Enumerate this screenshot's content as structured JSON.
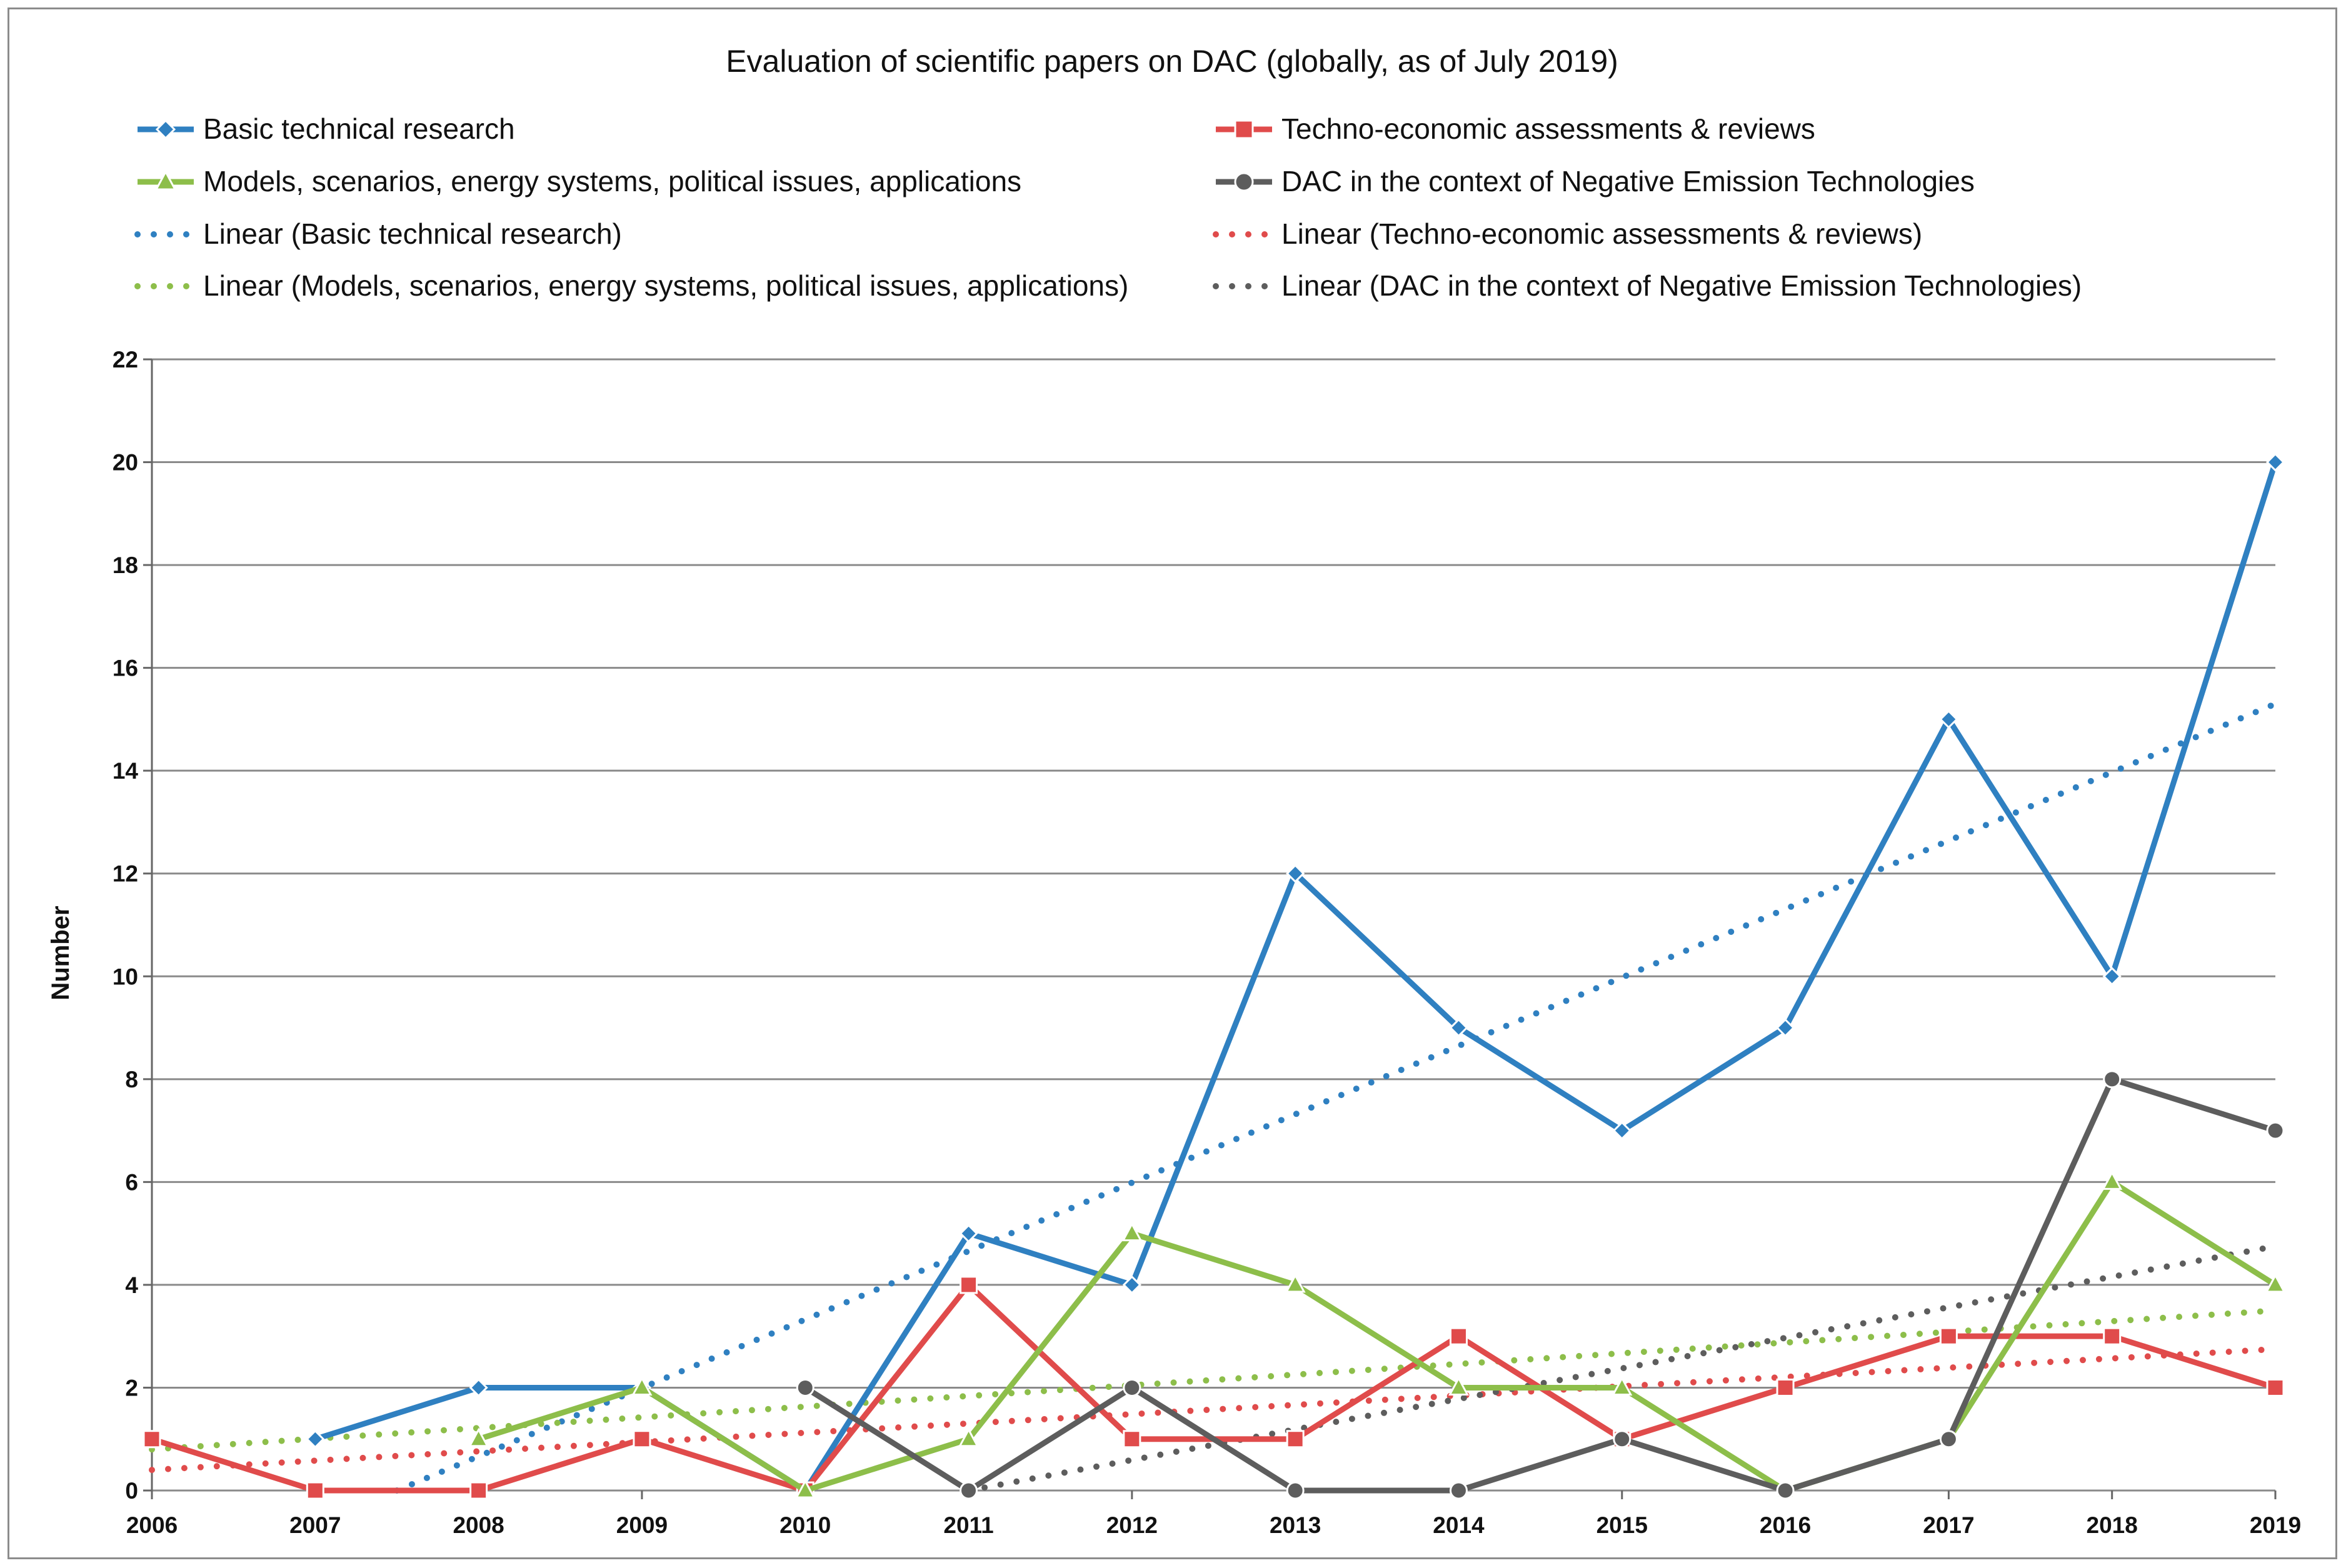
{
  "chart_data": {
    "type": "line",
    "title": "Evaluation of scientific papers on DAC (globally, as of July 2019)",
    "xlabel": "",
    "ylabel": "Number",
    "ylim": [
      0,
      22
    ],
    "ytick_step": 2,
    "grid": true,
    "categories": [
      "2006",
      "2007",
      "2008",
      "2009",
      "2010",
      "2011",
      "2012",
      "2013",
      "2014",
      "2015",
      "2016",
      "2017",
      "2018",
      "2019"
    ],
    "series": [
      {
        "name": "Basic technical research",
        "color": "#2f80c1",
        "marker": "diamond",
        "values": [
          null,
          1,
          2,
          2,
          0,
          5,
          4,
          12,
          9,
          7,
          9,
          15,
          10,
          20
        ]
      },
      {
        "name": "Techno-economic assessments & reviews",
        "color": "#e04b4b",
        "marker": "square",
        "values": [
          1,
          0,
          0,
          1,
          0,
          4,
          1,
          1,
          3,
          1,
          2,
          3,
          3,
          2
        ]
      },
      {
        "name": "Models, scenarios, energy systems, political issues, applications",
        "color": "#8dbe4a",
        "marker": "triangle",
        "values": [
          null,
          null,
          1,
          2,
          0,
          1,
          5,
          4,
          2,
          2,
          0,
          1,
          6,
          4
        ]
      },
      {
        "name": "DAC in the context of Negative Emission Technologies",
        "color": "#5d5d5d",
        "marker": "circle",
        "values": [
          null,
          null,
          null,
          null,
          2,
          0,
          2,
          0,
          0,
          1,
          0,
          1,
          8,
          7
        ]
      }
    ],
    "trendlines": [
      {
        "name": "Linear (Basic technical research)",
        "color": "#2f80c1",
        "start": [
          2007.5,
          0
        ],
        "end": [
          2019,
          15.3
        ]
      },
      {
        "name": "Linear (Techno-economic assessments & reviews)",
        "color": "#e04b4b",
        "start": [
          2006,
          0.4
        ],
        "end": [
          2019,
          2.75
        ]
      },
      {
        "name": "Linear (Models, scenarios, energy systems, political issues, applications)",
        "color": "#8dbe4a",
        "start": [
          2006,
          0.8
        ],
        "end": [
          2019,
          3.5
        ]
      },
      {
        "name": "Linear (DAC in the context of Negative Emission Technologies)",
        "color": "#5d5d5d",
        "start": [
          2011,
          0
        ],
        "end": [
          2019,
          4.75
        ]
      }
    ],
    "legend_position": "top"
  }
}
